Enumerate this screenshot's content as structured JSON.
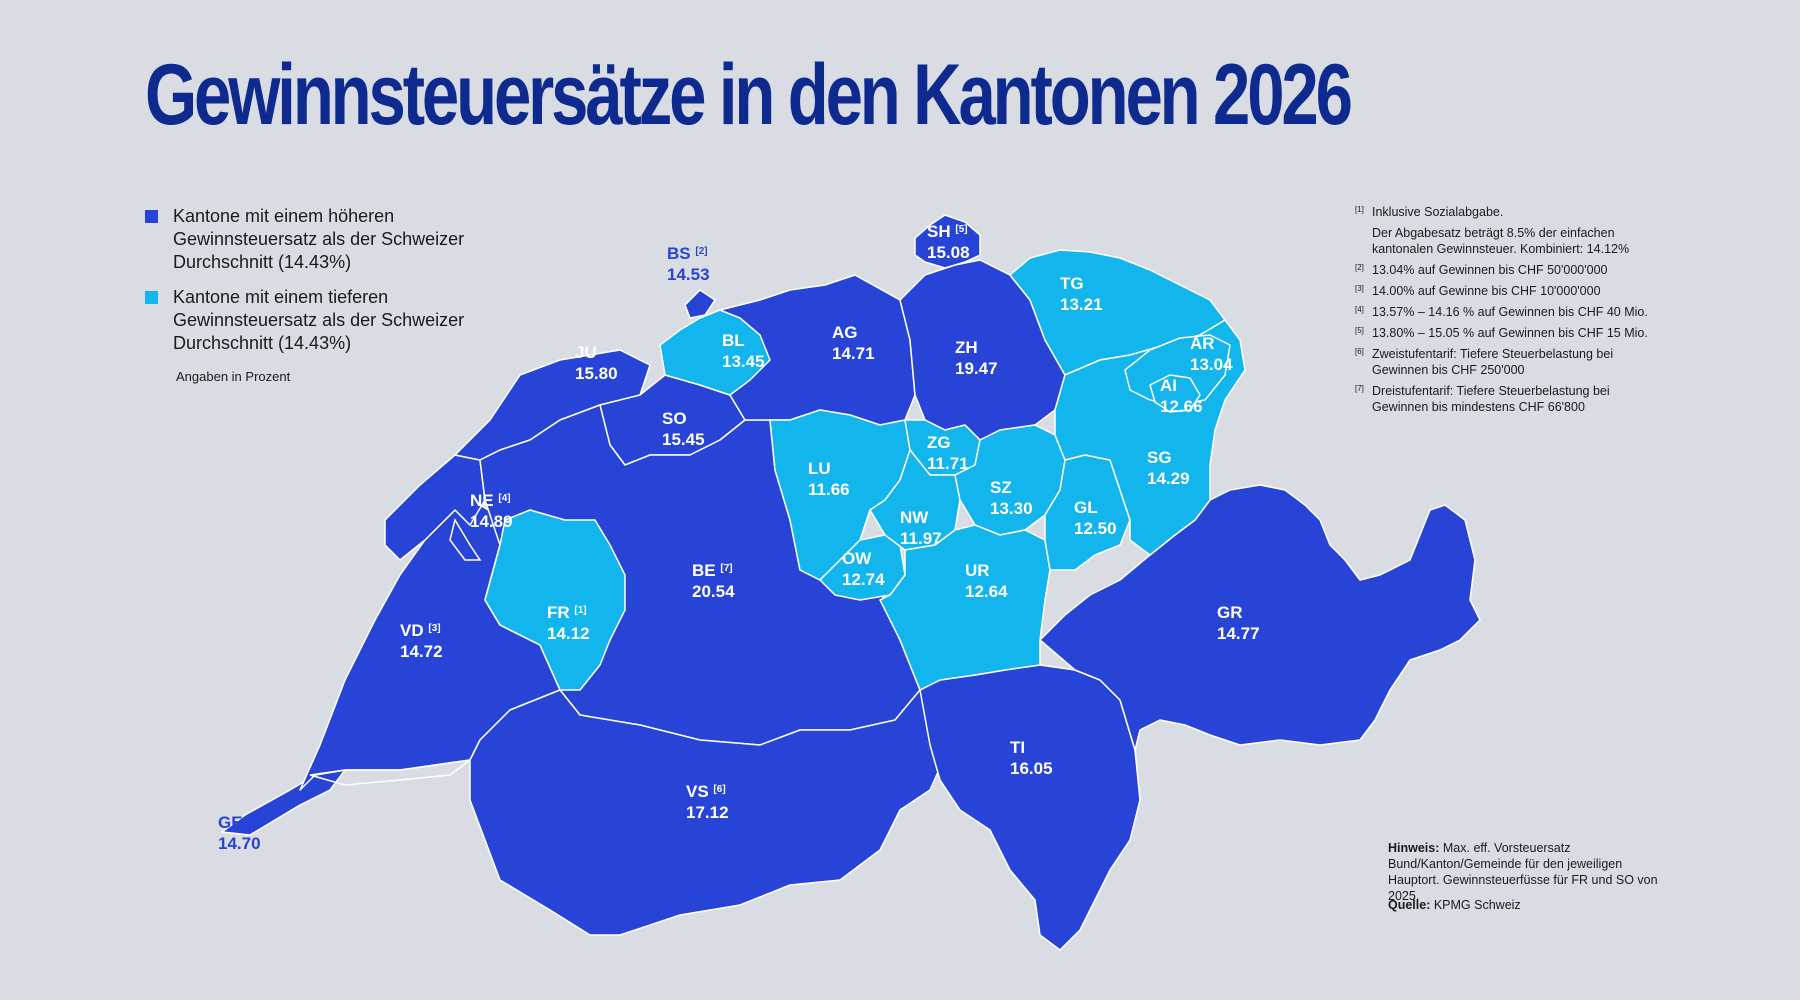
{
  "title": "Gewinnsteuersätze in den Kantonen 2026",
  "colors": {
    "higher": "#2844d6",
    "lower": "#12b6ec",
    "border": "#ffffff",
    "background": "#d9dde3"
  },
  "legend": {
    "higher": "Kantone mit einem höheren Gewinnsteuersatz als der Schweizer Durchschnitt (14.43%)",
    "lower": "Kantone mit einem tieferen Gewinnsteuersatz als der Schweizer Durchschnitt (14.43%)",
    "unit_note": "Angaben in Prozent"
  },
  "cantons": [
    {
      "code": "GE",
      "value": "14.70",
      "ref": "",
      "group": "higher"
    },
    {
      "code": "VD",
      "value": "14.72",
      "ref": "[3]",
      "group": "higher"
    },
    {
      "code": "FR",
      "value": "14.12",
      "ref": "[1]",
      "group": "lower"
    },
    {
      "code": "NE",
      "value": "14.89",
      "ref": "[4]",
      "group": "higher"
    },
    {
      "code": "JU",
      "value": "15.80",
      "ref": "",
      "group": "higher"
    },
    {
      "code": "BS",
      "value": "14.53",
      "ref": "[2]",
      "group": "higher"
    },
    {
      "code": "BL",
      "value": "13.45",
      "ref": "",
      "group": "lower"
    },
    {
      "code": "SO",
      "value": "15.45",
      "ref": "",
      "group": "higher"
    },
    {
      "code": "BE",
      "value": "20.54",
      "ref": "[7]",
      "group": "higher"
    },
    {
      "code": "VS",
      "value": "17.12",
      "ref": "[6]",
      "group": "higher"
    },
    {
      "code": "AG",
      "value": "14.71",
      "ref": "",
      "group": "higher"
    },
    {
      "code": "LU",
      "value": "11.66",
      "ref": "",
      "group": "lower"
    },
    {
      "code": "OW",
      "value": "12.74",
      "ref": "",
      "group": "lower"
    },
    {
      "code": "NW",
      "value": "11.97",
      "ref": "",
      "group": "lower"
    },
    {
      "code": "ZG",
      "value": "11.71",
      "ref": "",
      "group": "lower"
    },
    {
      "code": "ZH",
      "value": "19.47",
      "ref": "",
      "group": "higher"
    },
    {
      "code": "SH",
      "value": "15.08",
      "ref": "[5]",
      "group": "higher"
    },
    {
      "code": "TG",
      "value": "13.21",
      "ref": "",
      "group": "lower"
    },
    {
      "code": "AR",
      "value": "13.04",
      "ref": "",
      "group": "lower"
    },
    {
      "code": "AI",
      "value": "12.66",
      "ref": "",
      "group": "lower"
    },
    {
      "code": "SG",
      "value": "14.29",
      "ref": "",
      "group": "lower"
    },
    {
      "code": "SZ",
      "value": "13.30",
      "ref": "",
      "group": "lower"
    },
    {
      "code": "GL",
      "value": "12.50",
      "ref": "",
      "group": "lower"
    },
    {
      "code": "UR",
      "value": "12.64",
      "ref": "",
      "group": "lower"
    },
    {
      "code": "TI",
      "value": "16.05",
      "ref": "",
      "group": "higher"
    },
    {
      "code": "GR",
      "value": "14.77",
      "ref": "",
      "group": "higher"
    }
  ],
  "footnotes": [
    {
      "ref": "[1]",
      "text": "Inklusive Sozialabgabe.",
      "extra": "Der Abgabesatz beträgt 8.5% der einfachen kantonalen Gewinnsteuer. Kombiniert: 14.12%"
    },
    {
      "ref": "[2]",
      "text": "13.04% auf Gewinnen bis CHF 50'000'000"
    },
    {
      "ref": "[3]",
      "text": "14.00% auf Gewinne bis CHF 10'000'000"
    },
    {
      "ref": "[4]",
      "text": "13.57% – 14.16 % auf Gewinnen bis CHF 40 Mio."
    },
    {
      "ref": "[5]",
      "text": "13.80% – 15.05 % auf Gewinnen bis CHF 15 Mio."
    },
    {
      "ref": "[6]",
      "text": "Zweistufentarif: Tiefere Steuerbelastung bei Gewinnen bis CHF 250'000"
    },
    {
      "ref": "[7]",
      "text": "Dreistufentarif: Tiefere Steuerbelastung bei Gewinnen bis mindestens CHF 66'800"
    }
  ],
  "hint": {
    "label": "Hinweis:",
    "text": " Max. eff. Vorsteuersatz Bund/Kanton/Gemeinde für den jeweiligen Hauptort. Gewinnsteuerfüsse für FR und SO von 2025."
  },
  "source": {
    "label": "Quelle:",
    "text": " KPMG Schweiz"
  }
}
